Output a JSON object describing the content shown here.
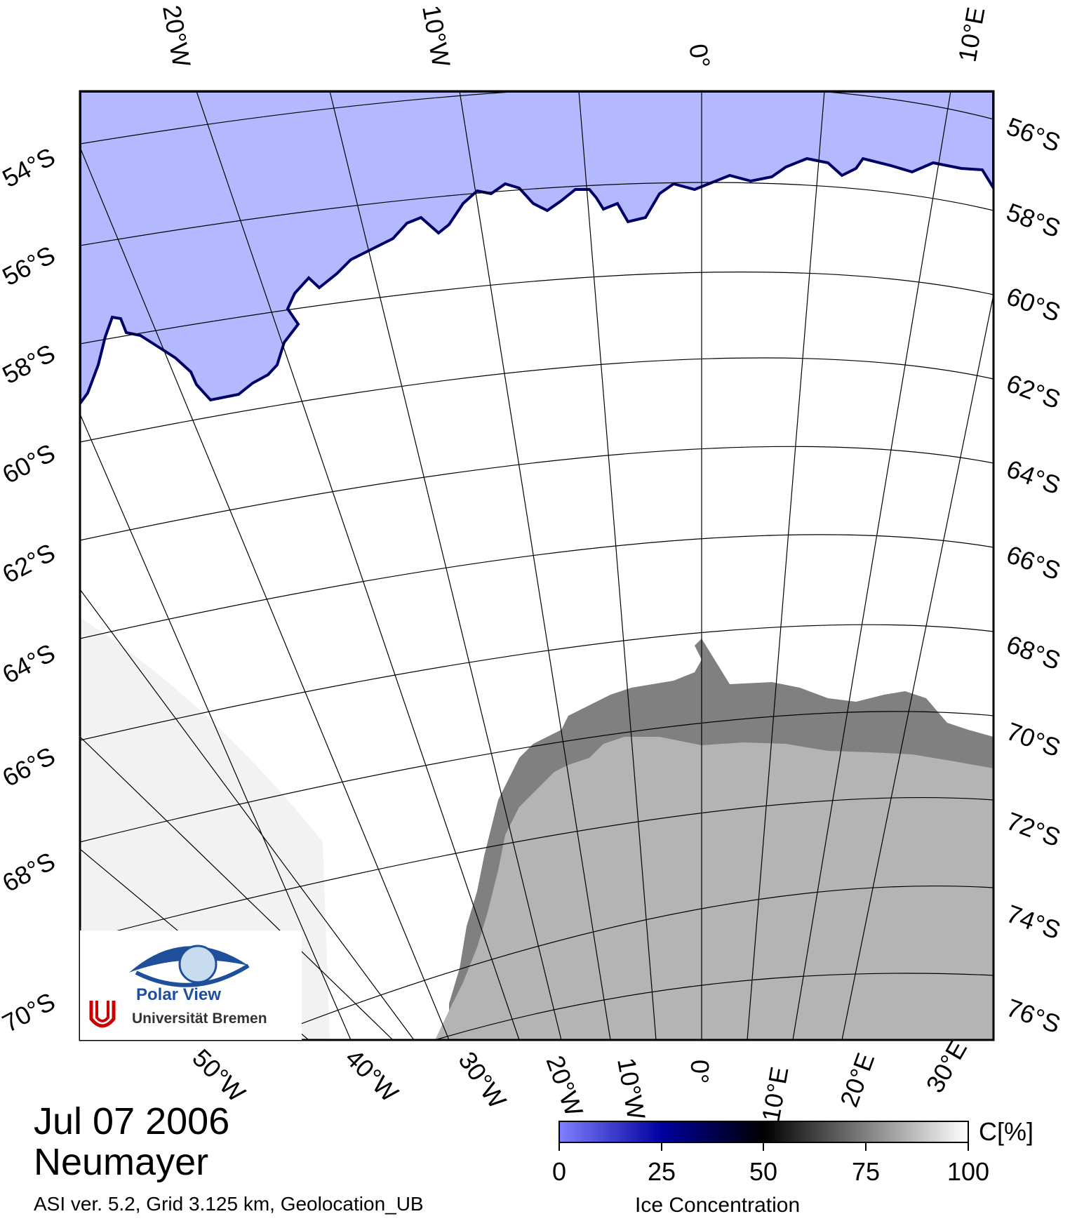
{
  "map": {
    "date": "Jul 07 2006",
    "station": "Neumayer",
    "footer": "ASI ver. 5.2,  Grid 3.125 km, Geolocation_UB",
    "top_lon_labels": [
      "20°W",
      "10°W",
      "0°",
      "10°E"
    ],
    "bottom_lon_labels": [
      "50°W",
      "40°W",
      "30°W",
      "20°W",
      "10°W",
      "0°",
      "10°E",
      "20°E",
      "30°E"
    ],
    "left_lat_labels": [
      "54°S",
      "56°S",
      "58°S",
      "60°S",
      "62°S",
      "64°S",
      "66°S",
      "68°S",
      "70°S"
    ],
    "right_lat_labels": [
      "56°S",
      "58°S",
      "60°S",
      "62°S",
      "64°S",
      "66°S",
      "68°S",
      "70°S",
      "72°S",
      "74°S",
      "76°S"
    ]
  },
  "legend": {
    "title": "Ice Concentration",
    "unit": "C[%]",
    "ticks": [
      "0",
      "25",
      "50",
      "75",
      "100"
    ],
    "colors": {
      "open_water": "#b3b8ff",
      "low": "#2020c0",
      "mid": "#000030",
      "high": "#ffffff",
      "land_ice_shelf": "#808080",
      "land": "#b4b4b4"
    }
  },
  "logo": {
    "name": "Polar View",
    "institution": "Universität Bremen"
  }
}
